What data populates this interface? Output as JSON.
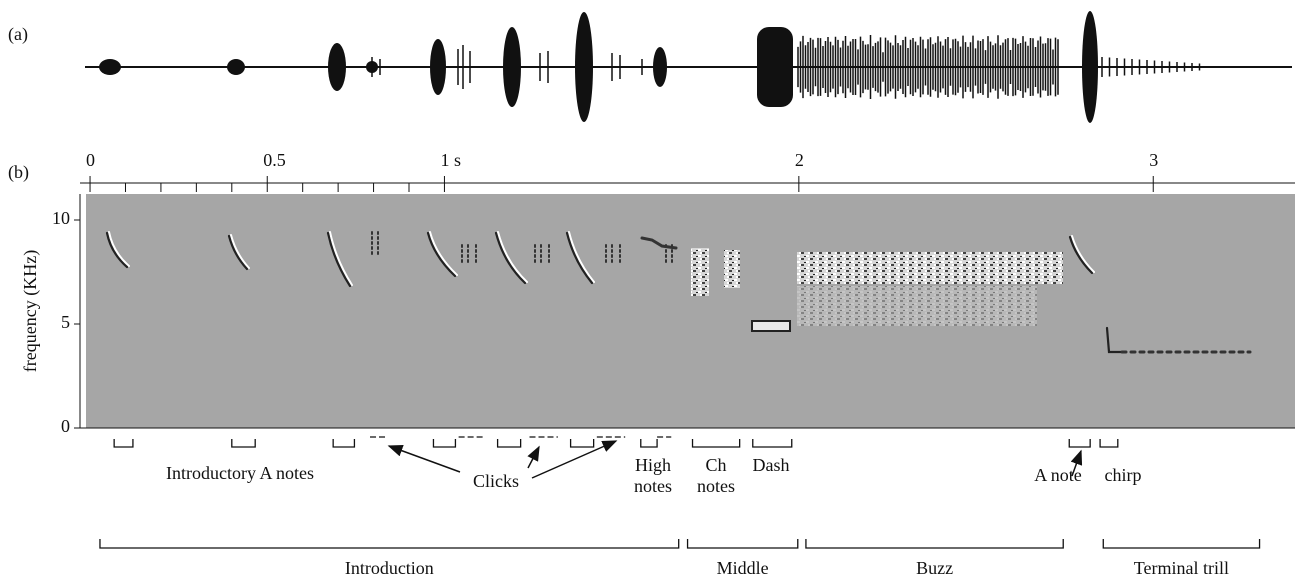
{
  "chart_data": {
    "type": "spectrogram",
    "panel_labels": [
      "(a)",
      "(b)"
    ],
    "ylabel": "frequency (KHz)",
    "xlim": [
      -0.01,
      3.4
    ],
    "xticks": [
      0,
      0.5,
      {
        "value": 1,
        "label": "1 s"
      },
      2,
      3
    ],
    "xminorticks": [
      0.1,
      0.2,
      0.3,
      0.4,
      0.6,
      0.7,
      0.8,
      0.9
    ],
    "ylim": [
      0,
      11.25
    ],
    "yticks": [
      0,
      5,
      10
    ],
    "note_brackets": [
      [
        0.068,
        0.121
      ],
      [
        0.4,
        0.466
      ],
      [
        0.686,
        0.746
      ],
      [
        0.969,
        1.031
      ],
      [
        1.15,
        1.215
      ],
      [
        1.356,
        1.421
      ],
      [
        1.554,
        1.6
      ],
      [
        1.7,
        1.833
      ],
      [
        1.87,
        1.98
      ],
      [
        2.763,
        2.822
      ],
      [
        2.85,
        2.9
      ]
    ],
    "click_marks": [
      [
        0.79,
        0.84
      ],
      [
        1.04,
        1.11
      ],
      [
        1.24,
        1.32
      ],
      [
        1.43,
        1.51
      ],
      [
        1.6,
        1.64
      ]
    ],
    "note_labels": [
      "Introductory A notes",
      "Clicks",
      "High notes",
      "Ch notes",
      "Dash",
      "A note",
      "chirp"
    ],
    "sections": [
      {
        "name": "Introduction",
        "start": 0.028,
        "end": 1.661
      },
      {
        "name": "Middle",
        "start": 1.686,
        "end": 1.997
      },
      {
        "name": "Buzz",
        "start": 2.02,
        "end": 2.746
      },
      {
        "name": "Terminal trill",
        "start": 2.859,
        "end": 3.3
      }
    ]
  }
}
